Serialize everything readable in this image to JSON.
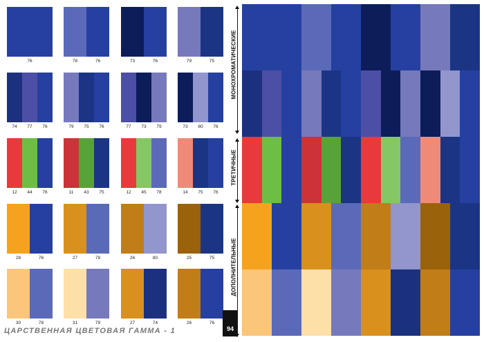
{
  "left_swatches": [
    [
      {
        "colors": [
          "#2540a0"
        ],
        "labels": [
          "76"
        ]
      },
      {
        "colors": [
          "#5b6ab8",
          "#2540a0"
        ],
        "labels": [
          "78",
          "76"
        ]
      },
      {
        "colors": [
          "#0c1d5a",
          "#2540a0"
        ],
        "labels": [
          "73",
          "76"
        ]
      },
      {
        "colors": [
          "#7679bb",
          "#1b3584"
        ],
        "labels": [
          "79",
          "75"
        ]
      }
    ],
    [
      {
        "colors": [
          "#1c3080",
          "#4b4fa5",
          "#2540a0"
        ],
        "labels": [
          "74",
          "77",
          "76"
        ]
      },
      {
        "colors": [
          "#7679bb",
          "#1b3584",
          "#2540a0"
        ],
        "labels": [
          "79",
          "75",
          "76"
        ]
      },
      {
        "colors": [
          "#4b4fa5",
          "#0c1d5a",
          "#7679bb"
        ],
        "labels": [
          "77",
          "73",
          "79"
        ]
      },
      {
        "colors": [
          "#0c1d5a",
          "#9296cc",
          "#2540a0"
        ],
        "labels": [
          "73",
          "80",
          "76"
        ]
      }
    ],
    [
      {
        "colors": [
          "#e83a3c",
          "#6ebd44",
          "#2540a0"
        ],
        "labels": [
          "12",
          "44",
          "76"
        ]
      },
      {
        "colors": [
          "#cc3338",
          "#58a338",
          "#1b3584"
        ],
        "labels": [
          "11",
          "43",
          "75"
        ]
      },
      {
        "colors": [
          "#e83a3c",
          "#86c765",
          "#5b6ab8"
        ],
        "labels": [
          "12",
          "45",
          "78"
        ]
      },
      {
        "colors": [
          "#f08a78",
          "#1b3584",
          "#2540a0"
        ],
        "labels": [
          "14",
          "75",
          "76"
        ]
      }
    ],
    [
      {
        "colors": [
          "#f5a31f",
          "#2540a0"
        ],
        "labels": [
          "28",
          "76"
        ]
      },
      {
        "colors": [
          "#d9901c",
          "#5b6ab8"
        ],
        "labels": [
          "27",
          "78"
        ]
      },
      {
        "colors": [
          "#c07d18",
          "#9296cc"
        ],
        "labels": [
          "26",
          "80"
        ]
      },
      {
        "colors": [
          "#9a620a",
          "#1b3584"
        ],
        "labels": [
          "25",
          "75"
        ]
      }
    ],
    [
      {
        "colors": [
          "#fbc57a",
          "#5b6ab8"
        ],
        "labels": [
          "30",
          "78"
        ]
      },
      {
        "colors": [
          "#fddfa8",
          "#7679bb"
        ],
        "labels": [
          "31",
          "79"
        ]
      },
      {
        "colors": [
          "#d9901c",
          "#1c3080"
        ],
        "labels": [
          "27",
          "74"
        ]
      },
      {
        "colors": [
          "#c07d18",
          "#2540a0"
        ],
        "labels": [
          "26",
          "76"
        ]
      }
    ]
  ],
  "right_rows": [
    [
      "#2540a0",
      "#2540a0",
      "#5b6ab8",
      "#2540a0",
      "#0c1d5a",
      "#2540a0",
      "#7679bb",
      "#1b3584"
    ],
    [
      "#1c3080",
      "#4b4fa5",
      "#2540a0",
      "#7679bb",
      "#1b3584",
      "#2540a0",
      "#4b4fa5",
      "#0c1d5a",
      "#7679bb",
      "#0c1d5a",
      "#9296cc",
      "#2540a0"
    ],
    [
      "#e83a3c",
      "#6ebd44",
      "#2540a0",
      "#cc3338",
      "#58a338",
      "#1b3584",
      "#e83a3c",
      "#86c765",
      "#5b6ab8",
      "#f08a78",
      "#1b3584",
      "#2540a0"
    ],
    [
      "#f5a31f",
      "#2540a0",
      "#d9901c",
      "#5b6ab8",
      "#c07d18",
      "#9296cc",
      "#9a620a",
      "#1b3584"
    ],
    [
      "#fbc57a",
      "#5b6ab8",
      "#fddfa8",
      "#7679bb",
      "#d9901c",
      "#1c3080",
      "#c07d18",
      "#2540a0"
    ]
  ],
  "section_labels": {
    "mono": "МОНОХРОМАТИЧЕСКИЕ",
    "tertiary": "ТРЕТИЧНЫЕ",
    "complementary": "ДОПОЛНИТЕЛЬНЫЕ"
  },
  "footer_title": "ЦАРСТВЕННАЯ ЦВЕТОВАЯ ГАММА - 1",
  "page_number": "94"
}
